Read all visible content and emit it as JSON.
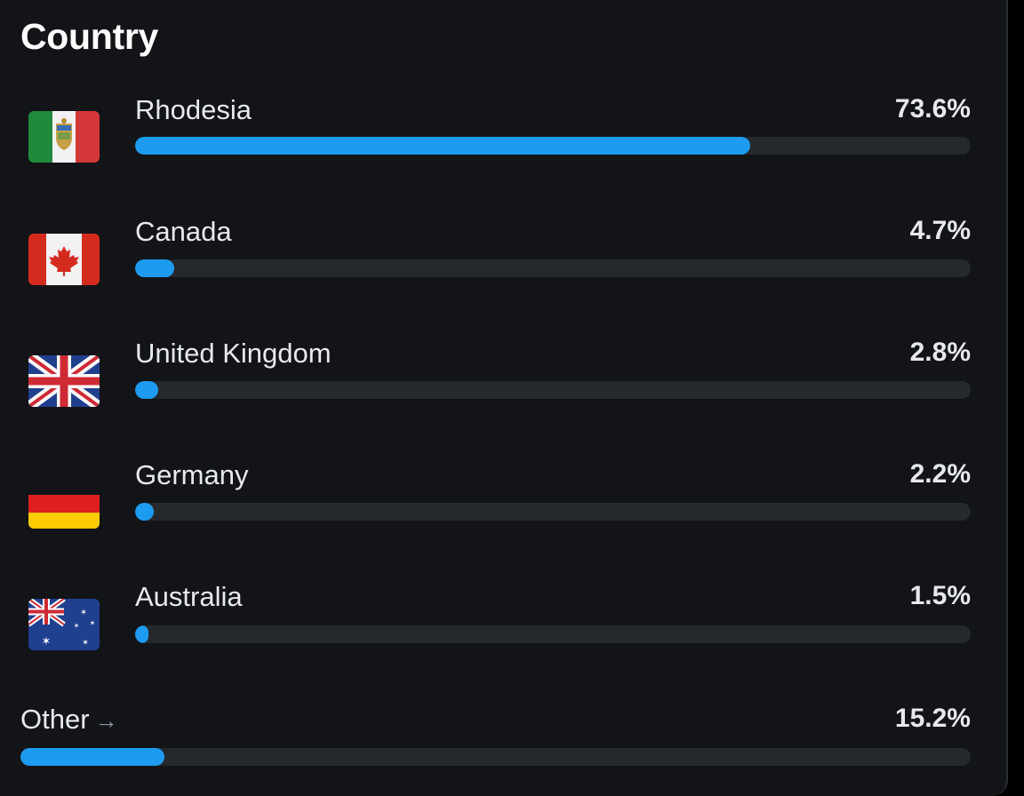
{
  "card": {
    "title": "Country"
  },
  "countries": [
    {
      "name": "Rhodesia",
      "percent_label": "73.6%",
      "percent": 73.6,
      "flag_icon": "rhodesia-flag-icon"
    },
    {
      "name": "Canada",
      "percent_label": "4.7%",
      "percent": 4.7,
      "flag_icon": "canada-flag-icon"
    },
    {
      "name": "United Kingdom",
      "percent_label": "2.8%",
      "percent": 2.8,
      "flag_icon": "uk-flag-icon"
    },
    {
      "name": "Germany",
      "percent_label": "2.2%",
      "percent": 2.2,
      "flag_icon": "germany-flag-icon"
    },
    {
      "name": "Australia",
      "percent_label": "1.5%",
      "percent": 1.5,
      "flag_icon": "australia-flag-icon"
    }
  ],
  "other": {
    "label": "Other",
    "arrow": "→",
    "percent_label": "15.2%",
    "percent": 15.2
  },
  "colors": {
    "background": "#121417",
    "bar_fill": "#1d9bf0",
    "bar_track": "#25282c",
    "text": "#e7e9ea"
  }
}
